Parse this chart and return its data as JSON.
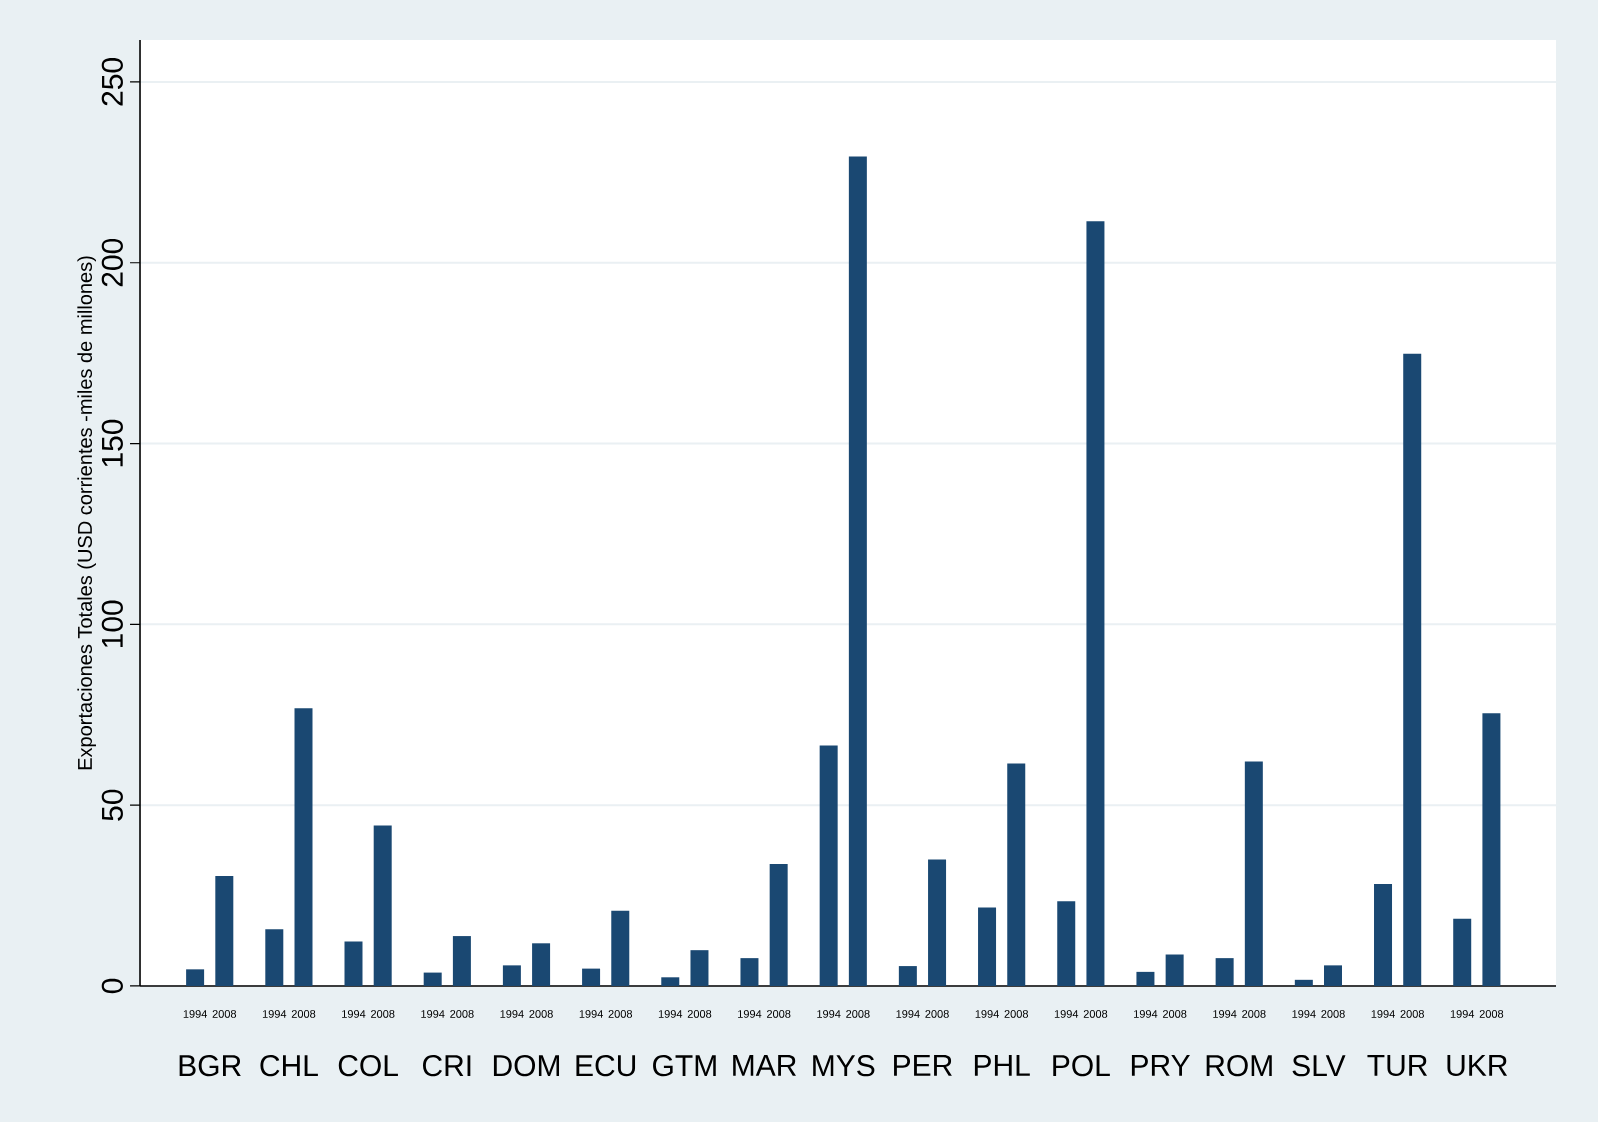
{
  "chart_data": {
    "type": "bar",
    "ylabel": "Exportaciones Totales (USD corrientes -miles de millones)",
    "categories": [
      "BGR",
      "CHL",
      "COL",
      "CRI",
      "DOM",
      "ECU",
      "GTM",
      "MAR",
      "MYS",
      "PER",
      "PHL",
      "POL",
      "PRY",
      "ROM",
      "SLV",
      "TUR",
      "UKR"
    ],
    "series": [
      {
        "name": "1994",
        "color": "#1a4872",
        "values": [
          4.6,
          15.7,
          12.3,
          3.7,
          5.7,
          4.8,
          2.4,
          7.7,
          66.5,
          5.5,
          21.7,
          23.4,
          3.9,
          7.7,
          1.7,
          28.2,
          18.6
        ]
      },
      {
        "name": "2008",
        "color": "#1a4872",
        "values": [
          30.4,
          76.8,
          44.4,
          13.8,
          11.8,
          20.8,
          9.9,
          33.7,
          229.4,
          35.0,
          61.5,
          211.5,
          8.7,
          62.1,
          5.7,
          174.8,
          75.4
        ]
      }
    ],
    "ylim": [
      0,
      261.6
    ],
    "yticks": [
      0,
      50,
      100,
      150,
      200,
      250
    ],
    "grid": "y",
    "legend": false
  }
}
